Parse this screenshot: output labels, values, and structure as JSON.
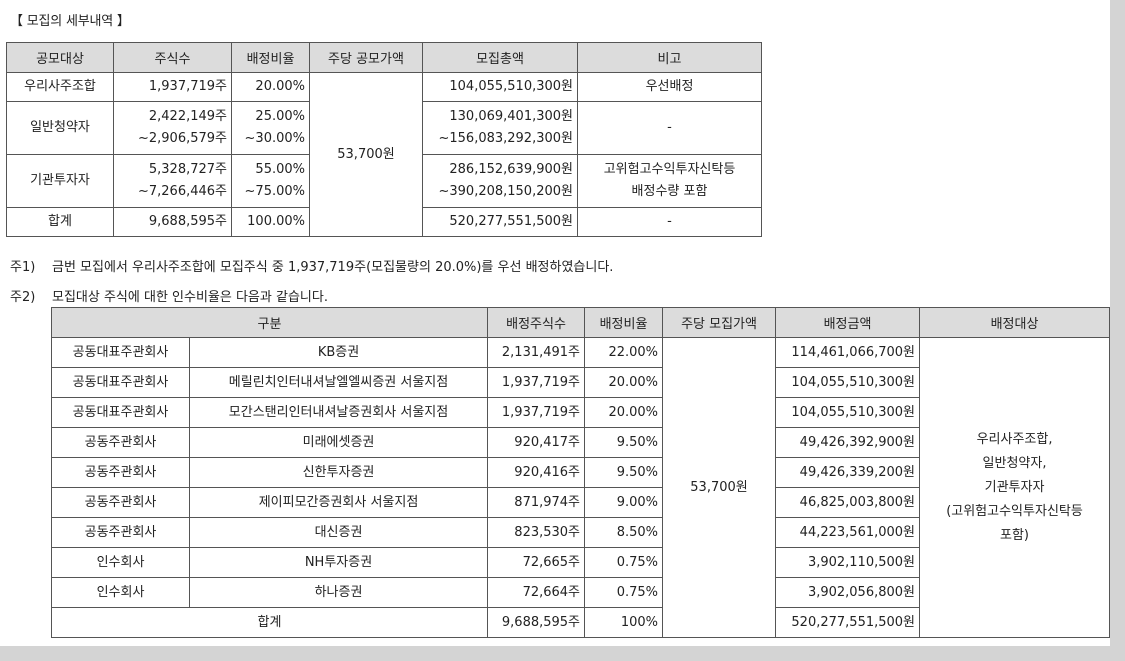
{
  "heading": "【 모집의 세부내역 】",
  "table1": {
    "headers": [
      "공모대상",
      "주식수",
      "배정비율",
      "주당 공모가액",
      "모집총액",
      "비고"
    ],
    "price": "53,700원",
    "rows": [
      {
        "target": "우리사주조합",
        "shares": [
          "1,937,719주"
        ],
        "ratio": [
          "20.00%"
        ],
        "amount": [
          "104,055,510,300원"
        ],
        "note": [
          "우선배정"
        ]
      },
      {
        "target": "일반청약자",
        "shares": [
          "2,422,149주",
          "~2,906,579주"
        ],
        "ratio": [
          "25.00%",
          "~30.00%"
        ],
        "amount": [
          "130,069,401,300원",
          "~156,083,292,300원"
        ],
        "note": [
          "-"
        ]
      },
      {
        "target": "기관투자자",
        "shares": [
          "5,328,727주",
          "~7,266,446주"
        ],
        "ratio": [
          "55.00%",
          "~75.00%"
        ],
        "amount": [
          "286,152,639,900원",
          "~390,208,150,200원"
        ],
        "note": [
          "고위험고수익투자신탁등",
          "배정수량 포함"
        ]
      },
      {
        "target": "합계",
        "shares": [
          "9,688,595주"
        ],
        "ratio": [
          "100.00%"
        ],
        "amount": [
          "520,277,551,500원"
        ],
        "note": [
          "-"
        ]
      }
    ]
  },
  "notes": [
    {
      "label": "주1)",
      "text": "금번 모집에서 우리사주조합에 모집주식 중 1,937,719주(모집물량의 20.0%)를 우선 배정하였습니다."
    },
    {
      "label": "주2)",
      "text": "모집대상 주식에 대한 인수비율은 다음과 같습니다."
    }
  ],
  "table2": {
    "headers": [
      "구분",
      "배정주식수",
      "배정비율",
      "주당 모집가액",
      "배정금액",
      "배정대상"
    ],
    "price": "53,700원",
    "alloc_target": [
      "우리사주조합,",
      "일반청약자,",
      "기관투자자",
      "(고위험고수익투자신탁등",
      "포함)"
    ],
    "rows": [
      {
        "role": "공동대표주관회사",
        "firm": "KB증권",
        "shares": "2,131,491주",
        "ratio": "22.00%",
        "amount": "114,461,066,700원"
      },
      {
        "role": "공동대표주관회사",
        "firm": "메릴린치인터내셔날엘엘씨증권 서울지점",
        "shares": "1,937,719주",
        "ratio": "20.00%",
        "amount": "104,055,510,300원"
      },
      {
        "role": "공동대표주관회사",
        "firm": "모간스탠리인터내셔날증권회사 서울지점",
        "shares": "1,937,719주",
        "ratio": "20.00%",
        "amount": "104,055,510,300원"
      },
      {
        "role": "공동주관회사",
        "firm": "미래에셋증권",
        "shares": "920,417주",
        "ratio": "9.50%",
        "amount": "49,426,392,900원"
      },
      {
        "role": "공동주관회사",
        "firm": "신한투자증권",
        "shares": "920,416주",
        "ratio": "9.50%",
        "amount": "49,426,339,200원"
      },
      {
        "role": "공동주관회사",
        "firm": "제이피모간증권회사 서울지점",
        "shares": "871,974주",
        "ratio": "9.00%",
        "amount": "46,825,003,800원"
      },
      {
        "role": "공동주관회사",
        "firm": "대신증권",
        "shares": "823,530주",
        "ratio": "8.50%",
        "amount": "44,223,561,000원"
      },
      {
        "role": "인수회사",
        "firm": "NH투자증권",
        "shares": "72,665주",
        "ratio": "0.75%",
        "amount": "3,902,110,500원"
      },
      {
        "role": "인수회사",
        "firm": "하나증권",
        "shares": "72,664주",
        "ratio": "0.75%",
        "amount": "3,902,056,800원"
      }
    ],
    "total": {
      "label": "합계",
      "shares": "9,688,595주",
      "ratio": "100%",
      "amount": "520,277,551,500원"
    }
  }
}
